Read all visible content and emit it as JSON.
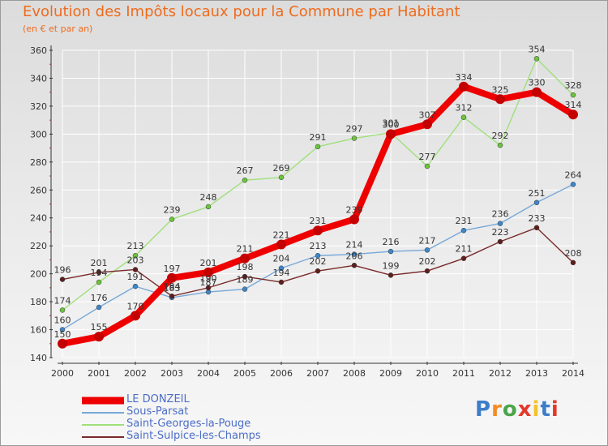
{
  "title": "Evolution des Impôts locaux pour la Commune par Habitant",
  "subtitle": "(en € et par an)",
  "logo": {
    "text": "Proxiti",
    "letter_colors": [
      "#3d7dc8",
      "#f28b25",
      "#4aa548",
      "#e23a2a",
      "#f5c22a",
      "#3d7dc8",
      "#e23a2a"
    ]
  },
  "colors": {
    "background_top": "#dcdcdc",
    "background_bottom": "#f7f7f7",
    "grid": "#ffffff",
    "axis": "#333333",
    "title": "#ee6c1e",
    "legend_text": "#4b6dc7"
  },
  "chart_data": {
    "type": "line",
    "title": "Evolution des Impôts locaux pour la Commune par Habitant",
    "subtitle": "(en € et par an)",
    "x": [
      2000,
      2001,
      2002,
      2003,
      2004,
      2005,
      2006,
      2007,
      2008,
      2009,
      2010,
      2011,
      2012,
      2013,
      2014
    ],
    "x_tick_labels": [
      "2000",
      "2001",
      "2002",
      "2003",
      "2004",
      "2005",
      "2006",
      "2007",
      "2008",
      "2009",
      "2010",
      "2011",
      "2012",
      "2013",
      "2014"
    ],
    "ylim": [
      140,
      360
    ],
    "y_ticks": [
      140,
      160,
      180,
      200,
      220,
      240,
      260,
      280,
      300,
      320,
      340,
      360
    ],
    "grid": true,
    "legend_position": "bottom-left",
    "series": [
      {
        "name": "LE DONZEIL",
        "color": "#ee0000",
        "marker_color": "#c40000",
        "line_width": 8,
        "values": [
          150,
          155,
          170,
          197,
          201,
          211,
          221,
          231,
          239,
          300,
          307,
          334,
          325,
          330,
          314
        ]
      },
      {
        "name": "Sous-Parsat",
        "color": "#76a8d8",
        "marker_color": "#3f86c8",
        "line_width": 1.4,
        "values": [
          160,
          176,
          191,
          183,
          187,
          189,
          204,
          213,
          214,
          216,
          217,
          231,
          236,
          251,
          264
        ]
      },
      {
        "name": "Saint-Georges-la-Pouge",
        "color": "#9fe07a",
        "marker_color": "#6cc43c",
        "line_width": 1.4,
        "values": [
          174,
          194,
          213,
          239,
          248,
          267,
          269,
          291,
          297,
          301,
          277,
          312,
          292,
          354,
          328
        ]
      },
      {
        "name": "Saint-Sulpice-les-Champs",
        "color": "#7a2a2a",
        "marker_color": "#5e1e1e",
        "line_width": 1.4,
        "values": [
          196,
          201,
          203,
          184,
          190,
          198,
          194,
          202,
          206,
          199,
          202,
          211,
          223,
          233,
          208
        ]
      }
    ]
  }
}
